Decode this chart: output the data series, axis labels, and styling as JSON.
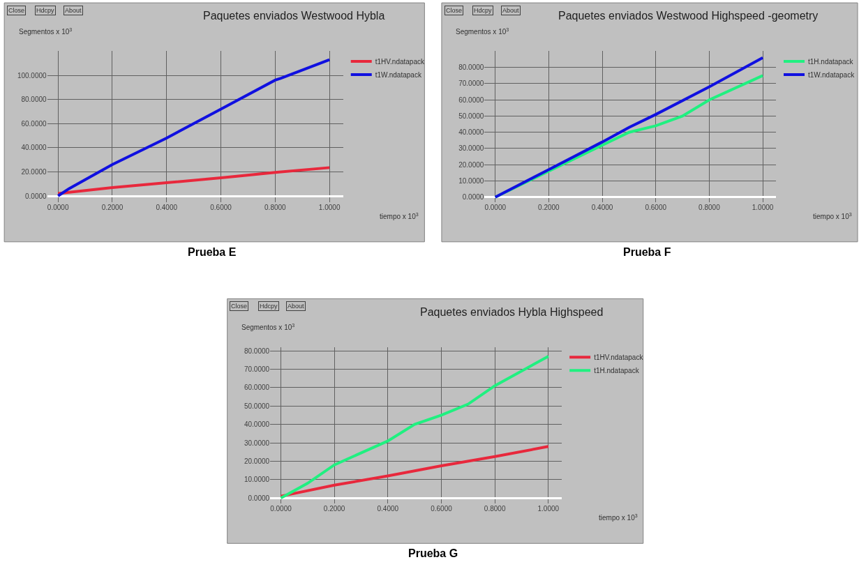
{
  "chart_data": [
    {
      "type": "line",
      "title": "Paquetes enviados Westwood Hybla",
      "xlabel": "tiempo x 10$^{3}$",
      "ylabel": "Segmentos x 10$^{3}$",
      "annotations": [
        "Close",
        "Hdcpy",
        "About",
        "Prueba E"
      ],
      "grid": true,
      "legend": "top right",
      "marker": "none",
      "line_style": "solid",
      "xlim": [
        -0.04,
        1.05
      ],
      "xticks": [
        {
          "value": 0,
          "label": "0.0000"
        },
        {
          "value": 0.2,
          "label": "0.2000"
        },
        {
          "value": 0.4,
          "label": "0.4000"
        },
        {
          "value": 0.6,
          "label": "0.6000"
        },
        {
          "value": 0.8,
          "label": "0.8000"
        },
        {
          "value": 1,
          "label": "1.0000"
        }
      ],
      "ylim": [
        -5,
        120
      ],
      "yticks": [
        {
          "value": 0,
          "label": "0.0000"
        },
        {
          "value": 20,
          "label": "20.0000"
        },
        {
          "value": 40,
          "label": "40.0000"
        },
        {
          "value": 60,
          "label": "60.0000"
        },
        {
          "value": 80,
          "label": "80.0000"
        },
        {
          "value": 100,
          "label": "100.0000"
        }
      ],
      "series": [
        {
          "name": "t1HV.ndatapack",
          "color": "#e8283c",
          "x": [
            0,
            0.2,
            0.4,
            0.6,
            0.8,
            1.0
          ],
          "values": [
            2,
            7,
            11,
            15,
            19.5,
            23.5
          ]
        },
        {
          "name": "t1W.ndatapack",
          "color": "#1010e0",
          "x": [
            0,
            0.04,
            0.2,
            0.4,
            0.6,
            0.8,
            0.82,
            1.0
          ],
          "values": [
            0,
            6,
            26,
            48,
            72,
            96,
            97.5,
            113
          ]
        }
      ]
    },
    {
      "type": "line",
      "title": "Paquetes enviados Westwood Highspeed -geometry",
      "xlabel": "tiempo x 10$^{3}$",
      "ylabel": "Segmentos x 10$^{3}$",
      "annotations": [
        "Close",
        "Hdcpy",
        "About",
        "Prueba F"
      ],
      "grid": true,
      "legend": "top right",
      "marker": "none",
      "line_style": "solid",
      "xlim": [
        -0.04,
        1.05
      ],
      "xticks": [
        {
          "value": 0,
          "label": "0.0000"
        },
        {
          "value": 0.2,
          "label": "0.2000"
        },
        {
          "value": 0.4,
          "label": "0.4000"
        },
        {
          "value": 0.6,
          "label": "0.6000"
        },
        {
          "value": 0.8,
          "label": "0.8000"
        },
        {
          "value": 1,
          "label": "1.0000"
        }
      ],
      "ylim": [
        -3,
        90
      ],
      "yticks": [
        {
          "value": 0,
          "label": "0.0000"
        },
        {
          "value": 10,
          "label": "10.0000"
        },
        {
          "value": 20,
          "label": "20.0000"
        },
        {
          "value": 30,
          "label": "30.0000"
        },
        {
          "value": 40,
          "label": "40.0000"
        },
        {
          "value": 50,
          "label": "50.0000"
        },
        {
          "value": 60,
          "label": "60.0000"
        },
        {
          "value": 70,
          "label": "70.0000"
        },
        {
          "value": 80,
          "label": "80.0000"
        }
      ],
      "series": [
        {
          "name": "t1H.ndatapack",
          "color": "#20f080",
          "x": [
            0,
            0.2,
            0.4,
            0.5,
            0.6,
            0.7,
            0.8,
            1.0
          ],
          "values": [
            0,
            16,
            32,
            40,
            44,
            50,
            60,
            75
          ]
        },
        {
          "name": "t1W.ndatapack",
          "color": "#1010e0",
          "x": [
            0,
            0.2,
            0.4,
            0.5,
            0.6,
            0.8,
            1.0
          ],
          "values": [
            0,
            17,
            34,
            43,
            51,
            68,
            86
          ]
        }
      ]
    },
    {
      "type": "line",
      "title": "Paquetes enviados Hybla Highspeed",
      "xlabel": "tiempo x 10$^{3}$",
      "ylabel": "Segmentos x 10$^{3}$",
      "annotations": [
        "Close",
        "Hdcpy",
        "About",
        "Prueba G"
      ],
      "grid": true,
      "legend": "top right",
      "marker": "none",
      "line_style": "solid",
      "xlim": [
        -0.04,
        1.05
      ],
      "xticks": [
        {
          "value": 0,
          "label": "0.0000"
        },
        {
          "value": 0.2,
          "label": "0.2000"
        },
        {
          "value": 0.4,
          "label": "0.4000"
        },
        {
          "value": 0.6,
          "label": "0.6000"
        },
        {
          "value": 0.8,
          "label": "0.8000"
        },
        {
          "value": 1,
          "label": "1.0000"
        }
      ],
      "ylim": [
        -3,
        82
      ],
      "yticks": [
        {
          "value": 0,
          "label": "0.0000"
        },
        {
          "value": 10,
          "label": "10.0000"
        },
        {
          "value": 20,
          "label": "20.0000"
        },
        {
          "value": 30,
          "label": "30.0000"
        },
        {
          "value": 40,
          "label": "40.0000"
        },
        {
          "value": 50,
          "label": "50.0000"
        },
        {
          "value": 60,
          "label": "60.0000"
        },
        {
          "value": 70,
          "label": "70.0000"
        },
        {
          "value": 80,
          "label": "80.0000"
        }
      ],
      "series": [
        {
          "name": "t1HV.ndatapack",
          "color": "#e8283c",
          "x": [
            0,
            0.2,
            0.4,
            0.6,
            0.8,
            1.0
          ],
          "values": [
            1,
            7,
            12,
            17.5,
            22.5,
            28
          ]
        },
        {
          "name": "t1H.ndatapack",
          "color": "#20f080",
          "x": [
            0,
            0.1,
            0.2,
            0.4,
            0.5,
            0.6,
            0.7,
            0.8,
            1.0
          ],
          "values": [
            0,
            8,
            18,
            31,
            40,
            45,
            51,
            61,
            77
          ]
        }
      ]
    }
  ]
}
